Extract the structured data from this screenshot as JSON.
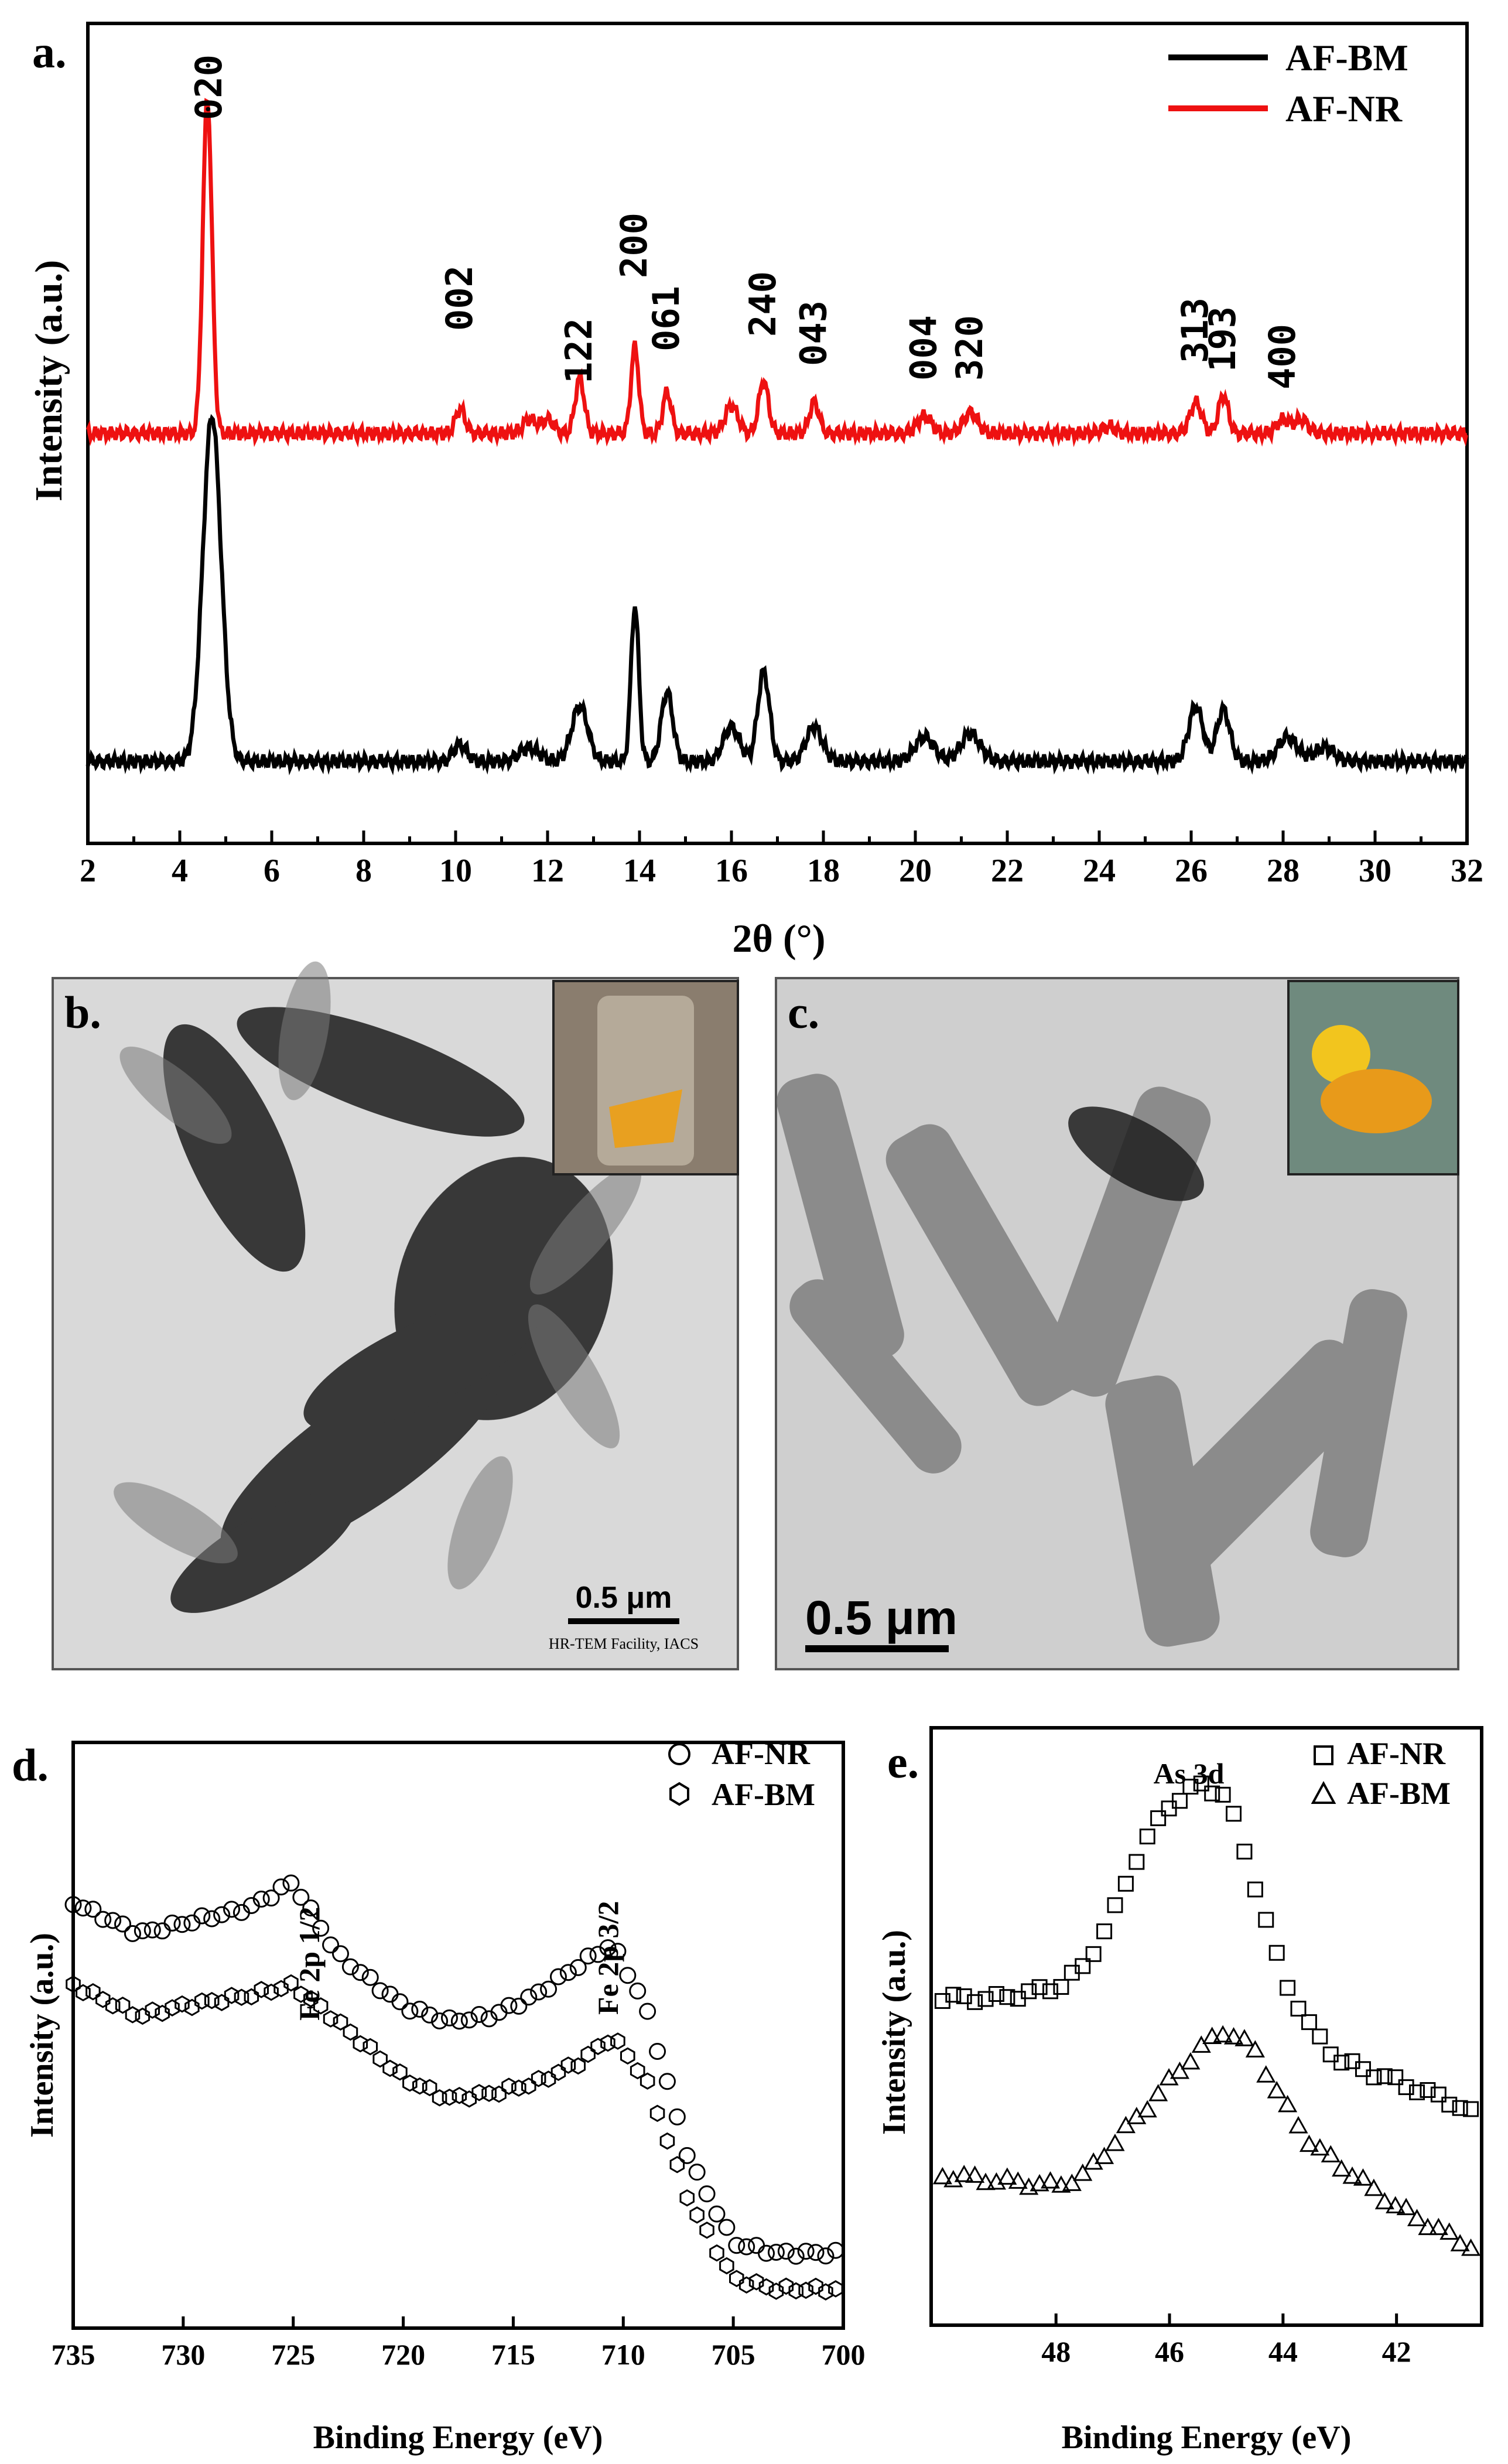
{
  "chart_data": [
    {
      "panel": "a.",
      "type": "line",
      "xlabel": "2θ (°)",
      "ylabel": "Intensity (a.u.)",
      "xlim": [
        2,
        32
      ],
      "xticks": [
        2,
        4,
        6,
        8,
        10,
        12,
        14,
        16,
        18,
        20,
        22,
        24,
        26,
        28,
        30,
        32
      ],
      "legend_position": "top-right",
      "series": [
        {
          "name": "AF-BM",
          "color": "#000000",
          "baseline": 0.0,
          "peaks": [
            [
              4.7,
              1.0,
              0.28
            ],
            [
              10.1,
              0.05,
              0.2
            ],
            [
              11.6,
              0.04,
              0.3
            ],
            [
              12.7,
              0.16,
              0.25
            ],
            [
              13.9,
              0.45,
              0.12
            ],
            [
              14.6,
              0.2,
              0.18
            ],
            [
              16.0,
              0.1,
              0.25
            ],
            [
              16.7,
              0.26,
              0.18
            ],
            [
              17.8,
              0.1,
              0.25
            ],
            [
              20.2,
              0.07,
              0.3
            ],
            [
              21.2,
              0.08,
              0.3
            ],
            [
              26.1,
              0.16,
              0.22
            ],
            [
              26.7,
              0.15,
              0.2
            ],
            [
              28.1,
              0.07,
              0.3
            ],
            [
              28.9,
              0.04,
              0.3
            ]
          ]
        },
        {
          "name": "AF-NR",
          "color": "#ee1111",
          "baseline": 0.85,
          "peaks": [
            [
              4.6,
              0.97,
              0.14
            ],
            [
              10.1,
              0.07,
              0.15
            ],
            [
              11.6,
              0.04,
              0.2
            ],
            [
              12.0,
              0.04,
              0.2
            ],
            [
              12.7,
              0.16,
              0.14
            ],
            [
              13.9,
              0.25,
              0.12
            ],
            [
              14.6,
              0.12,
              0.13
            ],
            [
              16.0,
              0.08,
              0.2
            ],
            [
              16.7,
              0.15,
              0.15
            ],
            [
              17.8,
              0.09,
              0.15
            ],
            [
              20.2,
              0.05,
              0.22
            ],
            [
              21.2,
              0.06,
              0.22
            ],
            [
              24.2,
              0.02,
              0.2
            ],
            [
              26.1,
              0.09,
              0.18
            ],
            [
              26.7,
              0.11,
              0.15
            ],
            [
              28.0,
              0.04,
              0.2
            ],
            [
              28.4,
              0.04,
              0.2
            ]
          ]
        }
      ],
      "annotations": [
        "020",
        "002",
        "122",
        "200",
        "061",
        "240",
        "043",
        "004",
        "320",
        "313",
        "193",
        "400"
      ],
      "annotation_x": [
        4.65,
        10.1,
        12.7,
        13.9,
        14.6,
        16.7,
        17.8,
        20.2,
        21.2,
        26.1,
        26.7,
        28.0
      ]
    },
    {
      "panel": "d.",
      "type": "scatter",
      "xlabel": "Binding Energy (eV)",
      "ylabel": "Intensity (a.u.)",
      "xlim": [
        735,
        700
      ],
      "xticks": [
        735,
        730,
        725,
        720,
        715,
        710,
        705,
        700
      ],
      "legend_position": "top-right",
      "series": [
        {
          "name": "AF-NR",
          "marker": "circle",
          "baseline": 0.78,
          "points": [
            [
              735,
              0.78
            ],
            [
              732,
              0.72
            ],
            [
              730,
              0.74
            ],
            [
              727,
              0.77
            ],
            [
              725,
              0.82
            ],
            [
              723,
              0.68
            ],
            [
              720,
              0.58
            ],
            [
              718,
              0.55
            ],
            [
              716,
              0.56
            ],
            [
              714,
              0.6
            ],
            [
              712,
              0.66
            ],
            [
              710.5,
              0.7
            ],
            [
              709,
              0.58
            ],
            [
              707,
              0.28
            ],
            [
              705,
              0.12
            ],
            [
              703,
              0.1
            ],
            [
              700,
              0.1
            ]
          ]
        },
        {
          "name": "AF-BM",
          "marker": "hexagon",
          "baseline": 0.62,
          "points": [
            [
              735,
              0.62
            ],
            [
              732,
              0.56
            ],
            [
              730,
              0.58
            ],
            [
              727,
              0.6
            ],
            [
              725,
              0.62
            ],
            [
              723,
              0.55
            ],
            [
              720,
              0.44
            ],
            [
              718,
              0.4
            ],
            [
              716,
              0.41
            ],
            [
              714,
              0.43
            ],
            [
              712,
              0.47
            ],
            [
              710.5,
              0.52
            ],
            [
              709,
              0.44
            ],
            [
              707,
              0.2
            ],
            [
              705,
              0.05
            ],
            [
              703,
              0.03
            ],
            [
              700,
              0.03
            ]
          ]
        }
      ],
      "annotations": [
        "Fe 2p 1/2",
        "Fe 2p 3/2"
      ],
      "annotation_x": [
        724.7,
        710.8
      ]
    },
    {
      "panel": "e.",
      "type": "scatter",
      "xlabel": "Binding Energy (eV)",
      "ylabel": "Intensity (a.u.)",
      "xlim": [
        50.2,
        40.5
      ],
      "xticks": [
        48,
        46,
        44,
        42
      ],
      "legend_position": "top-right",
      "series": [
        {
          "name": "AF-NR",
          "marker": "square",
          "points": [
            [
              50,
              0.56
            ],
            [
              49,
              0.56
            ],
            [
              48,
              0.58
            ],
            [
              47.5,
              0.62
            ],
            [
              47,
              0.72
            ],
            [
              46.5,
              0.85
            ],
            [
              46,
              0.93
            ],
            [
              45.5,
              0.97
            ],
            [
              45,
              0.95
            ],
            [
              44.5,
              0.78
            ],
            [
              44,
              0.6
            ],
            [
              43.5,
              0.5
            ],
            [
              43,
              0.44
            ],
            [
              42,
              0.4
            ],
            [
              41,
              0.36
            ],
            [
              40.7,
              0.34
            ]
          ]
        },
        {
          "name": "AF-BM",
          "marker": "triangle",
          "points": [
            [
              50,
              0.22
            ],
            [
              49,
              0.21
            ],
            [
              48,
              0.2
            ],
            [
              47.5,
              0.22
            ],
            [
              47,
              0.28
            ],
            [
              46.5,
              0.34
            ],
            [
              46,
              0.4
            ],
            [
              45.5,
              0.46
            ],
            [
              45,
              0.5
            ],
            [
              44.5,
              0.46
            ],
            [
              44,
              0.36
            ],
            [
              43.5,
              0.28
            ],
            [
              43,
              0.24
            ],
            [
              42,
              0.16
            ],
            [
              41,
              0.1
            ],
            [
              40.6,
              0.08
            ]
          ]
        }
      ],
      "annotations": [
        "As 3d"
      ],
      "annotation_x": [
        45.4
      ]
    }
  ],
  "panels": {
    "a": {
      "label": "a.",
      "xlabel": "2θ (°)",
      "ylabel": "Intensity (a.u.)",
      "legend": [
        "AF-BM",
        "AF-NR"
      ]
    },
    "b": {
      "label": "b.",
      "scalebar": "0.5 μm",
      "credit": "HR-TEM Facility, IACS"
    },
    "c": {
      "label": "c.",
      "scalebar": "0.5 μm"
    },
    "d": {
      "label": "d.",
      "xlabel": "Binding Energy (eV)",
      "ylabel": "Intensity (a.u.)",
      "legend": [
        "AF-NR",
        "AF-BM"
      ],
      "peak1": "Fe 2p 1/2",
      "peak2": "Fe 2p 3/2"
    },
    "e": {
      "label": "e.",
      "xlabel": "Binding Energy (eV)",
      "ylabel": "Intensity (a.u.)",
      "legend": [
        "AF-NR",
        "AF-BM"
      ],
      "peak": "As 3d"
    }
  },
  "colors": {
    "af_bm": "#000000",
    "af_nr": "#ee1111",
    "tem_bg": "#d4d4d4",
    "tem_particle": "#1e1e1e"
  }
}
